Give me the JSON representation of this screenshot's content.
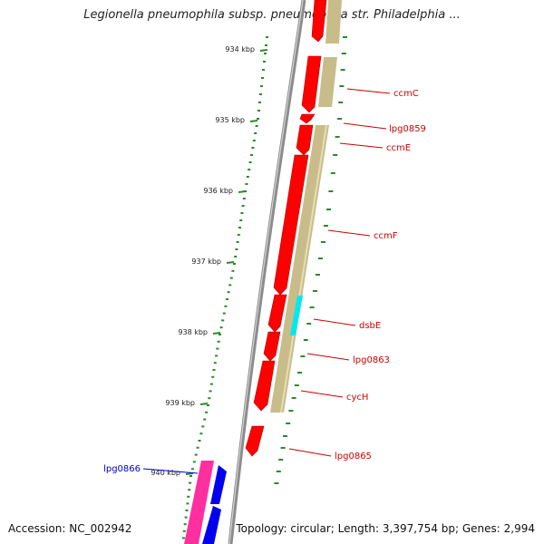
{
  "title": "Legionella pneumophila subsp. pneumophila str. Philadelphia ...",
  "footer": {
    "accession": "Accession: NC_002942",
    "topology": "Topology: circular; Length: 3,397,754 bp; Genes: 2,994"
  },
  "colors": {
    "backbone": "#8c8c8c",
    "tick": "#2a8a2a",
    "gene_forward": "#ff0000",
    "gene_reverse_band": "#c8bd8a",
    "gene_highlight": "#00e8f0",
    "gene_pink": "#ff2fa0",
    "gene_blue": "#0000ee",
    "label_red": "#cc0000",
    "label_blue": "#0000cc"
  },
  "ticks": [
    {
      "kbp": 934,
      "label": "934 kbp"
    },
    {
      "kbp": 935,
      "label": "935 kbp"
    },
    {
      "kbp": 936,
      "label": "936 kbp"
    },
    {
      "kbp": 937,
      "label": "937 kbp"
    },
    {
      "kbp": 938,
      "label": "938 kbp"
    },
    {
      "kbp": 939,
      "label": "939 kbp"
    },
    {
      "kbp": 940,
      "label": "940 kbp"
    }
  ],
  "genes": [
    {
      "name": "ccmC",
      "color": "label_red"
    },
    {
      "name": "lpg0859",
      "color": "label_red"
    },
    {
      "name": "ccmE",
      "color": "label_red"
    },
    {
      "name": "ccmF",
      "color": "label_red"
    },
    {
      "name": "dsbE",
      "color": "label_red"
    },
    {
      "name": "lpg0863",
      "color": "label_red"
    },
    {
      "name": "cycH",
      "color": "label_red"
    },
    {
      "name": "lpg0865",
      "color": "label_red"
    },
    {
      "name": "lpg0866",
      "color": "label_blue"
    }
  ]
}
